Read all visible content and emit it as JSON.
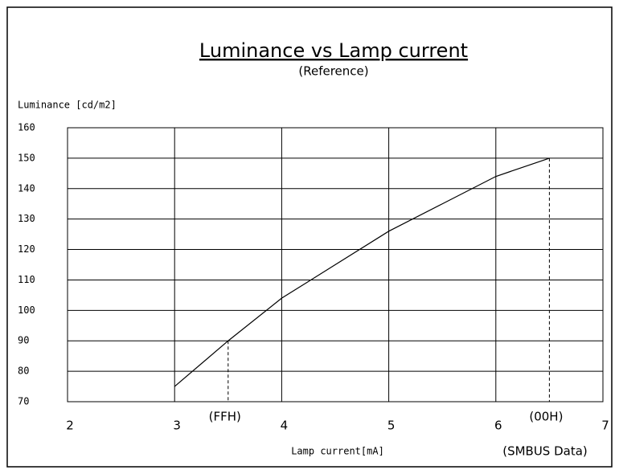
{
  "chart_data": {
    "type": "line",
    "title": "Luminance vs Lamp current",
    "subtitle": "(Reference)",
    "y_label": "Luminance [cd/m2]",
    "x_label": "Lamp current[mA]",
    "x": [
      3,
      3.5,
      4,
      4.5,
      5,
      5.5,
      6,
      6.5
    ],
    "values": [
      75,
      90,
      104,
      115,
      126,
      135,
      144,
      150
    ],
    "color": "#000000",
    "xlim": [
      2,
      7
    ],
    "xticks": [
      2,
      3,
      4,
      5,
      6,
      7
    ],
    "ylim": [
      70,
      160
    ],
    "yticks": [
      70,
      80,
      90,
      100,
      110,
      120,
      130,
      140,
      150,
      160
    ],
    "grid": true,
    "annotations": [
      {
        "text": "(FFH)",
        "x": 3.5
      },
      {
        "text": "(00H)",
        "x": 6.5
      }
    ],
    "x_note": "(SMBUS Data)"
  }
}
